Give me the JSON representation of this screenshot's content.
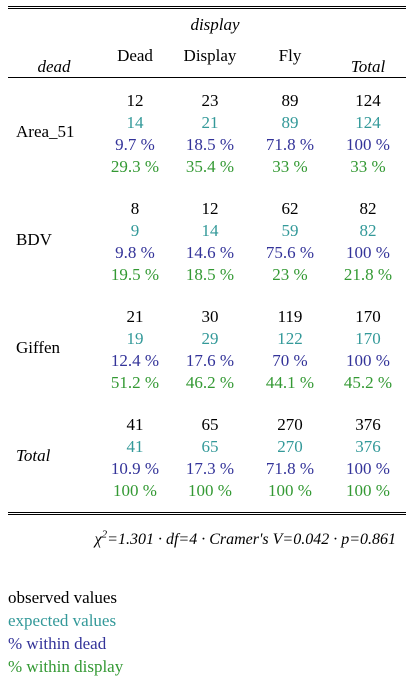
{
  "header": {
    "row_var": "dead",
    "col_var": "display",
    "columns": [
      "Dead",
      "Display",
      "Fly"
    ],
    "total_label": "Total"
  },
  "rows": [
    {
      "label": "Area_51",
      "cells": [
        {
          "obs": "12",
          "exp": "14",
          "rowp": "9.7 %",
          "colp": "29.3 %"
        },
        {
          "obs": "23",
          "exp": "21",
          "rowp": "18.5 %",
          "colp": "35.4 %"
        },
        {
          "obs": "89",
          "exp": "89",
          "rowp": "71.8 %",
          "colp": "33 %"
        },
        {
          "obs": "124",
          "exp": "124",
          "rowp": "100 %",
          "colp": "33 %"
        }
      ]
    },
    {
      "label": "BDV",
      "cells": [
        {
          "obs": "8",
          "exp": "9",
          "rowp": "9.8 %",
          "colp": "19.5 %"
        },
        {
          "obs": "12",
          "exp": "14",
          "rowp": "14.6 %",
          "colp": "18.5 %"
        },
        {
          "obs": "62",
          "exp": "59",
          "rowp": "75.6 %",
          "colp": "23 %"
        },
        {
          "obs": "82",
          "exp": "82",
          "rowp": "100 %",
          "colp": "21.8 %"
        }
      ]
    },
    {
      "label": "Giffen",
      "cells": [
        {
          "obs": "21",
          "exp": "19",
          "rowp": "12.4 %",
          "colp": "51.2 %"
        },
        {
          "obs": "30",
          "exp": "29",
          "rowp": "17.6 %",
          "colp": "46.2 %"
        },
        {
          "obs": "119",
          "exp": "122",
          "rowp": "70 %",
          "colp": "44.1 %"
        },
        {
          "obs": "170",
          "exp": "170",
          "rowp": "100 %",
          "colp": "45.2 %"
        }
      ]
    },
    {
      "label": "Total",
      "cells": [
        {
          "obs": "41",
          "exp": "41",
          "rowp": "10.9 %",
          "colp": "100 %"
        },
        {
          "obs": "65",
          "exp": "65",
          "rowp": "17.3 %",
          "colp": "100 %"
        },
        {
          "obs": "270",
          "exp": "270",
          "rowp": "71.8 %",
          "colp": "100 %"
        },
        {
          "obs": "376",
          "exp": "376",
          "rowp": "100 %",
          "colp": "100 %"
        }
      ]
    }
  ],
  "stats": {
    "chi_symbol": "χ",
    "chi_exp": "2",
    "rest": "=1.301 · df=4 · Cramer's V=0.042 · p=0.861"
  },
  "legend": [
    {
      "text": "observed values",
      "color": "#000000"
    },
    {
      "text": "expected values",
      "color": "#339999"
    },
    {
      "text": "% within dead",
      "color": "#333399"
    },
    {
      "text": "% within display",
      "color": "#339933"
    }
  ]
}
